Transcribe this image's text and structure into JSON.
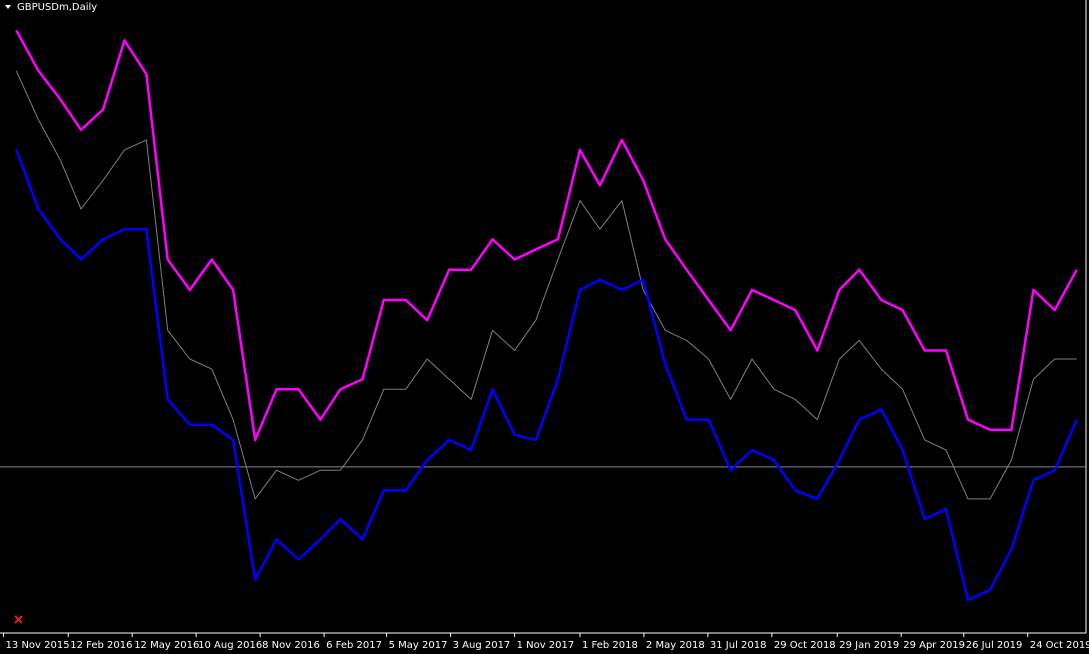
{
  "chart_data": {
    "type": "line",
    "title": "GBPUSDm,Daily",
    "x": [
      "2015-12-01",
      "2016-01-01",
      "2016-02-01",
      "2016-03-01",
      "2016-04-01",
      "2016-05-01",
      "2016-06-01",
      "2016-07-01",
      "2016-08-01",
      "2016-09-01",
      "2016-10-01",
      "2016-11-01",
      "2016-12-01",
      "2017-01-01",
      "2017-02-01",
      "2017-03-01",
      "2017-04-01",
      "2017-05-01",
      "2017-06-01",
      "2017-07-01",
      "2017-08-01",
      "2017-09-01",
      "2017-10-01",
      "2017-11-01",
      "2017-12-01",
      "2018-01-01",
      "2018-02-01",
      "2018-03-01",
      "2018-04-01",
      "2018-05-01",
      "2018-06-01",
      "2018-07-01",
      "2018-08-01",
      "2018-09-01",
      "2018-10-01",
      "2018-11-01",
      "2018-12-01",
      "2019-01-01",
      "2019-02-01",
      "2019-03-01",
      "2019-04-01",
      "2019-05-01",
      "2019-06-01",
      "2019-07-01",
      "2019-08-01",
      "2019-09-01",
      "2019-10-01",
      "2019-11-01",
      "2019-12-01",
      "2020-01-01"
    ],
    "series": [
      {
        "color": "#808080",
        "width": 1,
        "values": [
          1.502,
          1.473,
          1.449,
          1.42,
          1.437,
          1.455,
          1.461,
          1.348,
          1.331,
          1.325,
          1.295,
          1.248,
          1.265,
          1.259,
          1.265,
          1.265,
          1.283,
          1.313,
          1.313,
          1.331,
          1.319,
          1.307,
          1.348,
          1.336,
          1.354,
          1.39,
          1.425,
          1.408,
          1.425,
          1.372,
          1.348,
          1.342,
          1.331,
          1.307,
          1.331,
          1.313,
          1.307,
          1.295,
          1.331,
          1.342,
          1.325,
          1.313,
          1.283,
          1.277,
          1.248,
          1.248,
          1.271,
          1.319,
          1.331,
          1.331
        ]
      },
      {
        "color": "#ff00ff",
        "width": 2.5,
        "values": [
          1.526,
          1.502,
          1.485,
          1.467,
          1.479,
          1.52,
          1.5,
          1.39,
          1.372,
          1.39,
          1.372,
          1.283,
          1.313,
          1.313,
          1.295,
          1.313,
          1.319,
          1.366,
          1.366,
          1.354,
          1.384,
          1.384,
          1.402,
          1.39,
          1.396,
          1.402,
          1.455,
          1.434,
          1.461,
          1.437,
          1.402,
          1.384,
          1.366,
          1.348,
          1.372,
          1.366,
          1.36,
          1.336,
          1.372,
          1.384,
          1.366,
          1.36,
          1.336,
          1.336,
          1.295,
          1.289,
          1.289,
          1.372,
          1.36,
          1.384
        ]
      },
      {
        "color": "#0000ff",
        "width": 2.5,
        "values": [
          1.455,
          1.42,
          1.402,
          1.39,
          1.402,
          1.408,
          1.408,
          1.307,
          1.292,
          1.292,
          1.283,
          1.2,
          1.224,
          1.212,
          1.224,
          1.236,
          1.224,
          1.253,
          1.253,
          1.271,
          1.283,
          1.277,
          1.313,
          1.286,
          1.283,
          1.319,
          1.372,
          1.378,
          1.372,
          1.378,
          1.328,
          1.295,
          1.295,
          1.265,
          1.277,
          1.271,
          1.253,
          1.248,
          1.271,
          1.295,
          1.301,
          1.277,
          1.236,
          1.242,
          1.188,
          1.194,
          1.218,
          1.259,
          1.265,
          1.295
        ]
      }
    ],
    "hline": 1.267,
    "ylim": [
      1.169,
      1.544
    ],
    "xlim": [
      "2015-11-08",
      "2020-01-14"
    ],
    "xticks": [
      {
        "value": "2015-11-13",
        "label": "13 Nov 2015"
      },
      {
        "value": "2016-02-12",
        "label": "12 Feb 2016"
      },
      {
        "value": "2016-05-12",
        "label": "12 May 2016"
      },
      {
        "value": "2016-08-10",
        "label": "10 Aug 2016"
      },
      {
        "value": "2016-11-08",
        "label": "8 Nov 2016"
      },
      {
        "value": "2017-02-06",
        "label": "6 Feb 2017"
      },
      {
        "value": "2017-05-05",
        "label": "5 May 2017"
      },
      {
        "value": "2017-08-03",
        "label": "3 Aug 2017"
      },
      {
        "value": "2017-11-01",
        "label": "1 Nov 2017"
      },
      {
        "value": "2018-02-01",
        "label": "1 Feb 2018"
      },
      {
        "value": "2018-05-02",
        "label": "2 May 2018"
      },
      {
        "value": "2018-07-31",
        "label": "31 Jul 2018"
      },
      {
        "value": "2018-10-29",
        "label": "29 Oct 2018"
      },
      {
        "value": "2019-01-29",
        "label": "29 Jan 2019"
      },
      {
        "value": "2019-04-29",
        "label": "29 Apr 2019"
      },
      {
        "value": "2019-07-26",
        "label": "26 Jul 2019"
      },
      {
        "value": "2019-10-24",
        "label": "24 Oct 2019"
      }
    ]
  }
}
